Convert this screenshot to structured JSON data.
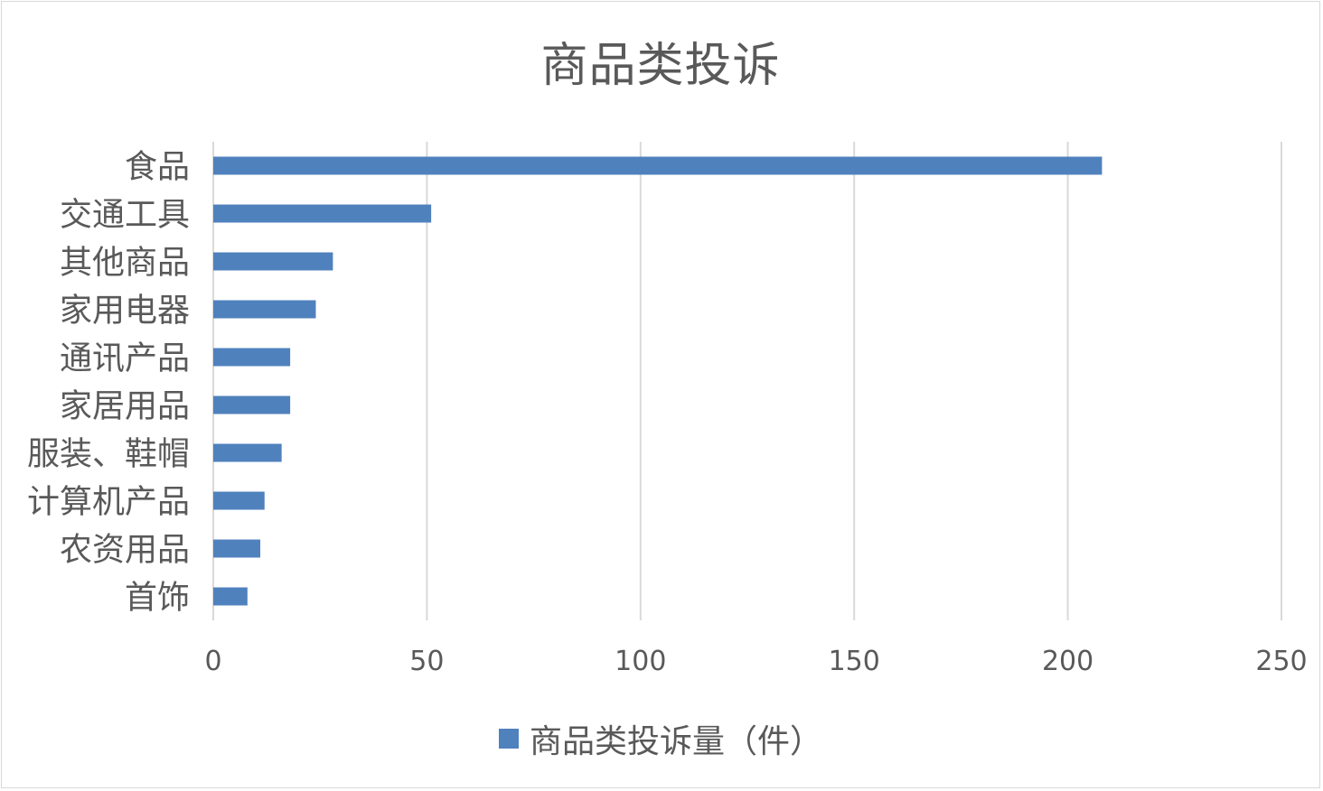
{
  "chart_data": {
    "type": "bar",
    "orientation": "horizontal",
    "title": "商品类投诉",
    "categories": [
      "食品",
      "交通工具",
      "其他商品",
      "家用电器",
      "通讯产品",
      "家居用品",
      "服装、鞋帽",
      "计算机产品",
      "农资用品",
      "首饰"
    ],
    "series": [
      {
        "name": "商品类投诉量（件）",
        "color": "#4f81bd",
        "values": [
          208,
          51,
          28,
          24,
          18,
          18,
          16,
          12,
          11,
          8
        ]
      }
    ],
    "xlim": [
      0,
      250
    ],
    "xticks": [
      "0",
      "50",
      "100",
      "150",
      "200",
      "250"
    ],
    "grid": true,
    "legend_position": "bottom"
  }
}
